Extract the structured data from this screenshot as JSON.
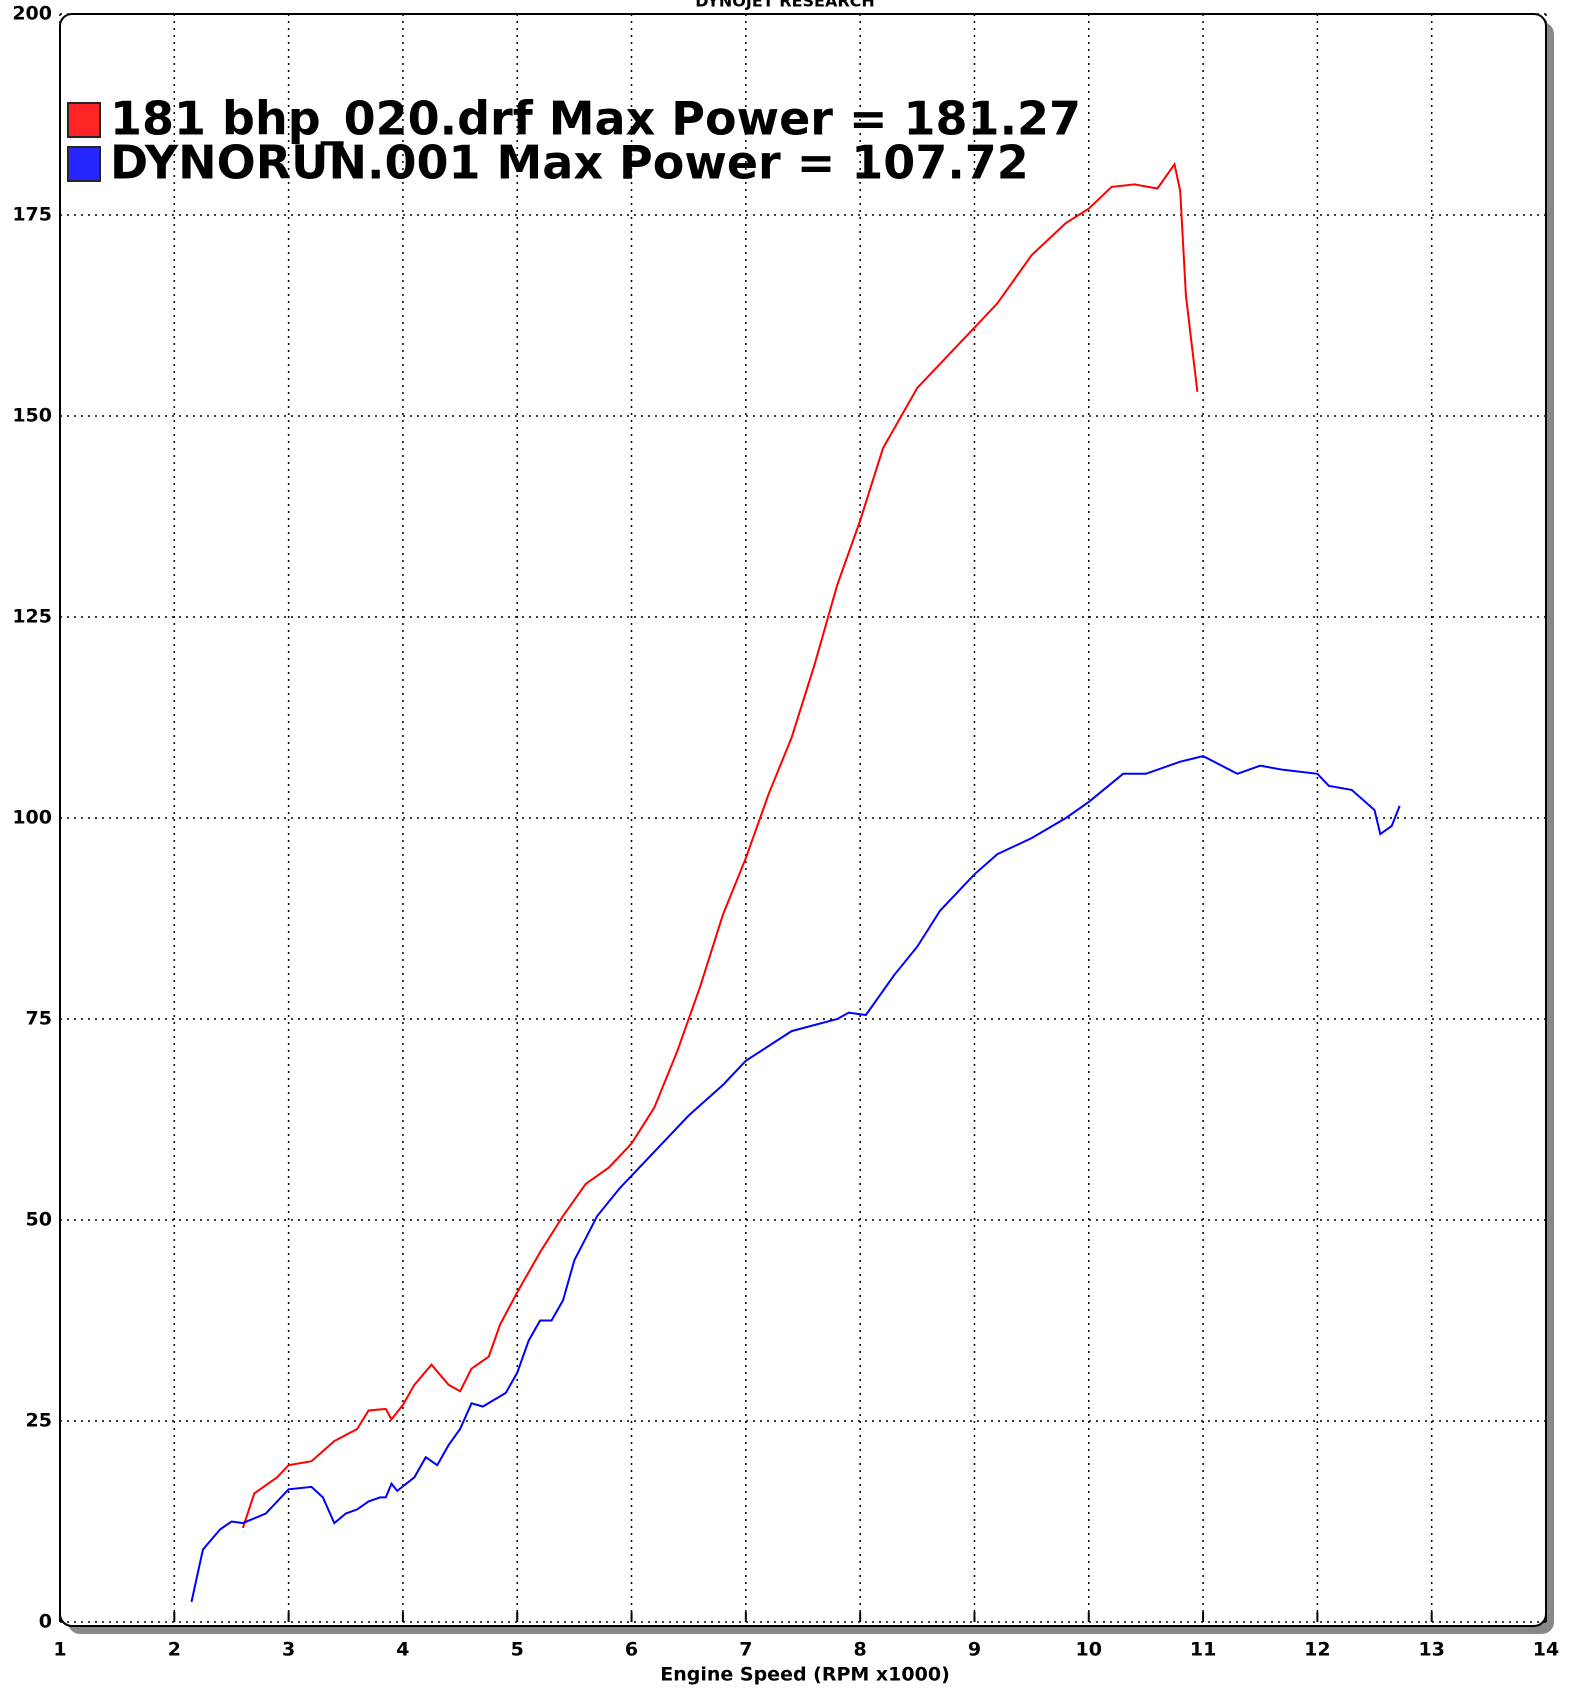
{
  "chart_data": {
    "type": "line",
    "title": "DYNOJET RESEARCH",
    "x_label": "Engine Speed (RPM x1000)",
    "xlim": [
      1,
      14
    ],
    "xticks": [
      1,
      2,
      3,
      4,
      5,
      6,
      7,
      8,
      9,
      10,
      11,
      12,
      13,
      14
    ],
    "ylim": [
      0,
      200
    ],
    "yticks": [
      0,
      25,
      50,
      75,
      100,
      125,
      150,
      175,
      200
    ],
    "grid": true,
    "series": [
      {
        "name": "181 bhp_020.drf Max Power = 181.27",
        "color": "#ff0000",
        "x": [
          2.6,
          2.7,
          2.8,
          2.9,
          3.0,
          3.2,
          3.4,
          3.6,
          3.7,
          3.85,
          3.9,
          4.0,
          4.1,
          4.25,
          4.4,
          4.5,
          4.6,
          4.75,
          4.85,
          5.0,
          5.2,
          5.4,
          5.6,
          5.8,
          6.0,
          6.2,
          6.4,
          6.6,
          6.8,
          7.0,
          7.2,
          7.4,
          7.6,
          7.8,
          8.0,
          8.2,
          8.5,
          8.8,
          9.0,
          9.2,
          9.5,
          9.8,
          10.0,
          10.2,
          10.4,
          10.6,
          10.75,
          10.8,
          10.85,
          10.95
        ],
        "values": [
          11.7,
          16,
          17,
          18,
          19.5,
          20,
          22.5,
          24,
          26.3,
          26.5,
          25.2,
          27,
          29.5,
          32,
          29.5,
          28.7,
          31.5,
          33,
          37,
          41,
          46,
          50.5,
          54.5,
          56.5,
          59.5,
          64,
          71,
          79,
          88,
          95,
          103,
          110,
          119,
          129,
          137,
          146,
          153.5,
          158,
          161,
          164,
          170,
          174,
          175.8,
          178.5,
          178.8,
          178.3,
          181.3,
          178,
          165,
          153
        ]
      },
      {
        "name": "DYNORUN.001 Max Power = 107.72",
        "color": "#0000ff",
        "x": [
          2.15,
          2.25,
          2.4,
          2.5,
          2.6,
          2.8,
          3.0,
          3.2,
          3.3,
          3.4,
          3.5,
          3.6,
          3.7,
          3.8,
          3.85,
          3.9,
          3.95,
          4.1,
          4.2,
          4.3,
          4.4,
          4.5,
          4.6,
          4.7,
          4.9,
          5.0,
          5.1,
          5.2,
          5.3,
          5.4,
          5.5,
          5.7,
          5.9,
          6.2,
          6.5,
          6.8,
          7.0,
          7.4,
          7.8,
          7.9,
          8.05,
          8.3,
          8.5,
          8.7,
          9.0,
          9.2,
          9.5,
          9.8,
          10.0,
          10.3,
          10.5,
          10.8,
          11.0,
          11.3,
          11.5,
          11.7,
          12.0,
          12.1,
          12.3,
          12.5,
          12.55,
          12.65,
          12.72
        ],
        "values": [
          2.5,
          9,
          11.5,
          12.5,
          12.3,
          13.5,
          16.5,
          16.8,
          15.5,
          12.3,
          13.5,
          14,
          15,
          15.5,
          15.5,
          17.2,
          16.3,
          18,
          20.5,
          19.5,
          22,
          24,
          27.2,
          26.8,
          28.5,
          31,
          35,
          37.5,
          37.5,
          40,
          45,
          50.5,
          54,
          58.5,
          63,
          66.8,
          69.8,
          73.5,
          75,
          75.8,
          75.5,
          80.5,
          84,
          88.5,
          93,
          95.5,
          97.5,
          100,
          102,
          105.5,
          105.5,
          107,
          107.7,
          105.5,
          106.5,
          106,
          105.5,
          104,
          103.5,
          101,
          98,
          99,
          101.5
        ]
      }
    ]
  }
}
